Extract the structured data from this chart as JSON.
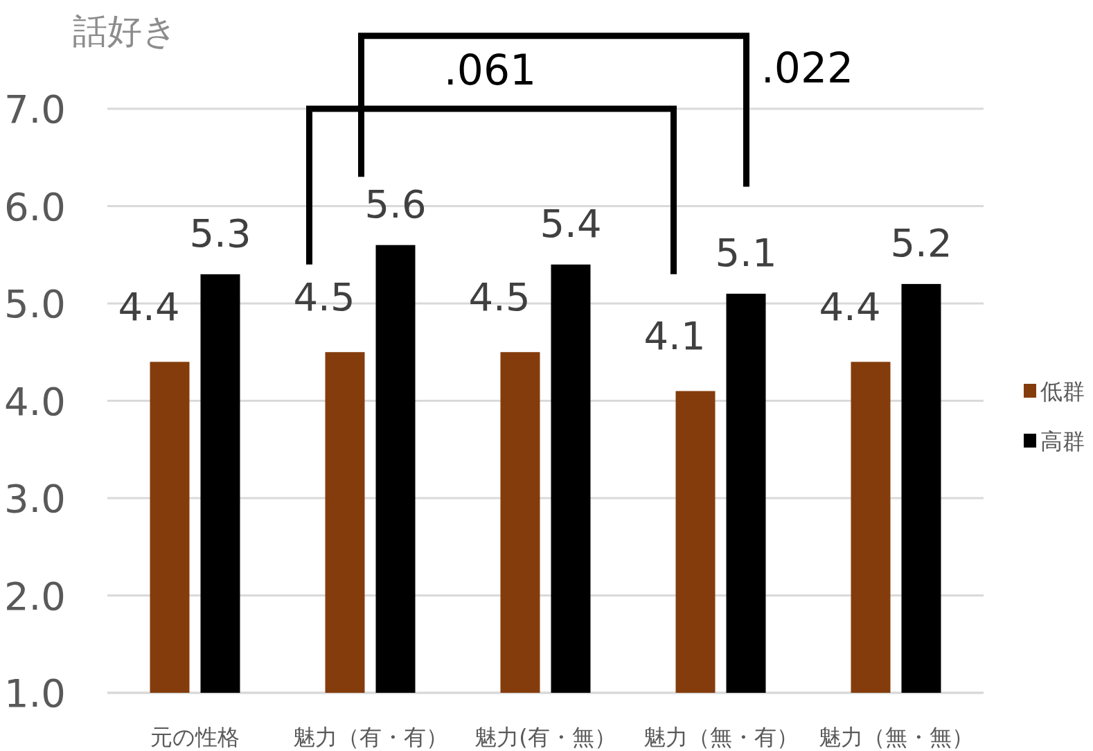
{
  "chart_data": {
    "type": "bar",
    "ylabel": "話好き",
    "categories": [
      "元の性格",
      "魅力（有・有）",
      "魅力(有・無）",
      "魅力（無・有）",
      "魅力（無・無）"
    ],
    "series": [
      {
        "name": "低群",
        "color": "#843c0c",
        "values": [
          4.4,
          4.5,
          4.5,
          4.1,
          4.4
        ]
      },
      {
        "name": "高群",
        "color": "#000000",
        "values": [
          5.3,
          5.6,
          5.4,
          5.1,
          5.2
        ]
      }
    ],
    "ylim": [
      1,
      7
    ],
    "yticks": [
      {
        "value": 1,
        "label": "1.0"
      },
      {
        "value": 2,
        "label": "2.0"
      },
      {
        "value": 3,
        "label": "3.0"
      },
      {
        "value": 4,
        "label": "4.0"
      },
      {
        "value": 5,
        "label": "5.0"
      },
      {
        "value": 6,
        "label": "6.0"
      },
      {
        "value": 7,
        "label": "7.0"
      }
    ],
    "grid": "y",
    "legend": "right",
    "data_labels": true,
    "annotations": [
      ".061",
      ".022"
    ]
  }
}
